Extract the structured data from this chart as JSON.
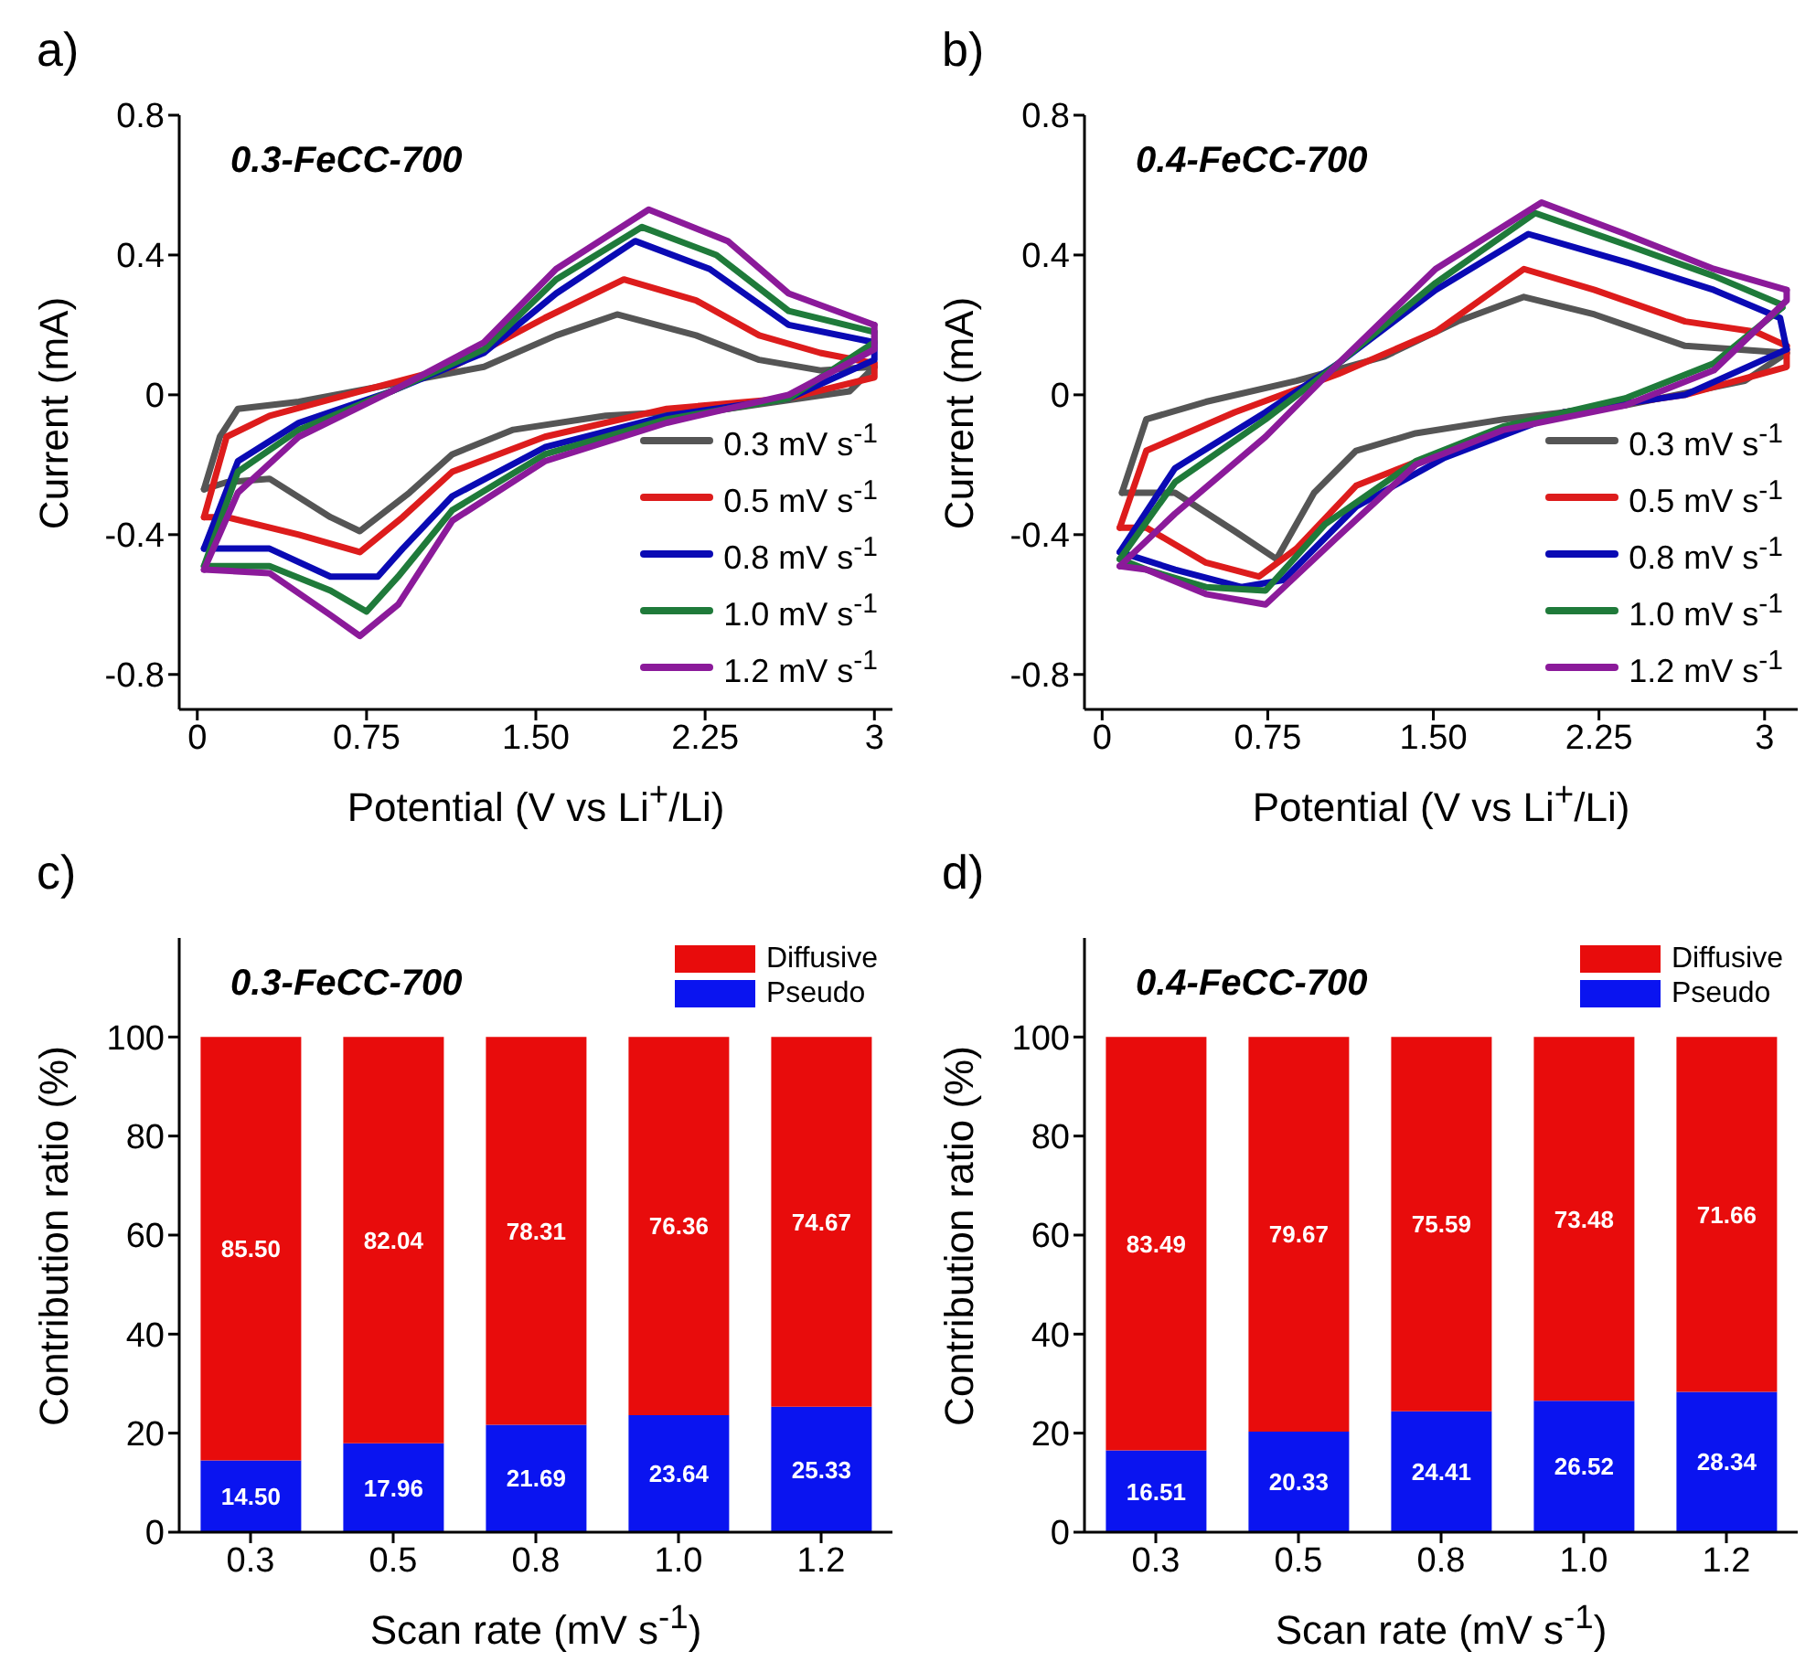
{
  "chart_data": [
    {
      "type": "line",
      "title": "0.3-FeCC-700",
      "xlabel": "Potential (V vs Li$^{+}$/Li)",
      "ylabel": "Current (mA)",
      "annotations": [
        "a)"
      ],
      "xlim": [
        -0.08,
        3.08
      ],
      "ylim": [
        -0.9,
        0.8
      ],
      "xticks": [
        0,
        0.75,
        {
          "value": 1.5,
          "label": "1.50"
        },
        2.25,
        3
      ],
      "yticks": [
        -0.8,
        -0.4,
        0,
        0.4,
        0.8
      ],
      "grid": false,
      "legend": "bottom right",
      "marker": "none",
      "line_style": "solid",
      "series": [
        {
          "name": "0.3 mV s$^{-1}$",
          "color": "#555555",
          "x": [
            0.03,
            0.1,
            0.18,
            0.45,
            0.86,
            1.27,
            1.59,
            1.86,
            2.21,
            2.49,
            2.76,
            3.0
          ],
          "values": [
            -0.27,
            -0.12,
            -0.04,
            -0.02,
            0.03,
            0.08,
            0.17,
            0.23,
            0.17,
            0.1,
            0.07,
            0.08
          ]
        },
        {
          "color": "#555555",
          "x": [
            3.0,
            2.89,
            2.35,
            1.81,
            1.4,
            1.13,
            0.94,
            0.72,
            0.59,
            0.32,
            0.13,
            0.03
          ],
          "values": [
            0.08,
            0.01,
            -0.04,
            -0.06,
            -0.1,
            -0.17,
            -0.28,
            -0.39,
            -0.35,
            -0.24,
            -0.25,
            -0.27
          ]
        },
        {
          "name": "0.5 mV s$^{-1}$",
          "color": "#dd1c1c",
          "x": [
            0.03,
            0.13,
            0.32,
            0.72,
            1.13,
            1.54,
            1.89,
            2.21,
            2.49,
            2.76,
            3.0
          ],
          "values": [
            -0.35,
            -0.12,
            -0.06,
            0.01,
            0.08,
            0.22,
            0.33,
            0.27,
            0.17,
            0.12,
            0.09
          ]
        },
        {
          "color": "#dd1c1c",
          "x": [
            3.0,
            3.0,
            2.62,
            2.08,
            1.54,
            1.13,
            0.91,
            0.72,
            0.45,
            0.13,
            0.03
          ],
          "values": [
            0.09,
            0.05,
            -0.01,
            -0.04,
            -0.12,
            -0.22,
            -0.35,
            -0.45,
            -0.4,
            -0.35,
            -0.35
          ]
        },
        {
          "name": "0.8 mV s$^{-1}$",
          "color": "#0a0ab4",
          "x": [
            0.03,
            0.18,
            0.45,
            0.86,
            1.27,
            1.59,
            1.94,
            2.27,
            2.62,
            3.0
          ],
          "values": [
            -0.44,
            -0.19,
            -0.08,
            0.01,
            0.12,
            0.29,
            0.44,
            0.36,
            0.2,
            0.15
          ]
        },
        {
          "color": "#0a0ab4",
          "x": [
            3.0,
            3.0,
            2.62,
            2.08,
            1.54,
            1.13,
            0.91,
            0.8,
            0.59,
            0.32,
            0.03
          ],
          "values": [
            0.15,
            0.1,
            -0.01,
            -0.06,
            -0.15,
            -0.29,
            -0.44,
            -0.52,
            -0.52,
            -0.44,
            -0.44
          ]
        },
        {
          "name": "1.0 mV s$^{-1}$",
          "color": "#1f7a3a",
          "x": [
            0.03,
            0.18,
            0.45,
            0.86,
            1.27,
            1.59,
            1.97,
            2.3,
            2.62,
            3.0
          ],
          "values": [
            -0.49,
            -0.22,
            -0.1,
            0.01,
            0.13,
            0.33,
            0.48,
            0.4,
            0.24,
            0.18
          ]
        },
        {
          "color": "#1f7a3a",
          "x": [
            3.0,
            3.0,
            2.62,
            2.08,
            1.54,
            1.13,
            0.89,
            0.75,
            0.59,
            0.32,
            0.03
          ],
          "values": [
            0.18,
            0.15,
            -0.01,
            -0.07,
            -0.17,
            -0.33,
            -0.52,
            -0.62,
            -0.56,
            -0.49,
            -0.49
          ]
        },
        {
          "name": "1.2 mV s$^{-1}$",
          "color": "#8b1a9a",
          "x": [
            0.03,
            0.18,
            0.45,
            0.86,
            1.27,
            1.59,
            2.0,
            2.35,
            2.62,
            3.0
          ],
          "values": [
            -0.5,
            -0.28,
            -0.12,
            0.01,
            0.15,
            0.36,
            0.53,
            0.44,
            0.29,
            0.2
          ]
        },
        {
          "color": "#8b1a9a",
          "x": [
            3.0,
            3.0,
            2.62,
            2.08,
            1.54,
            1.13,
            0.89,
            0.72,
            0.59,
            0.32,
            0.03
          ],
          "values": [
            0.2,
            0.13,
            0.0,
            -0.08,
            -0.19,
            -0.36,
            -0.6,
            -0.69,
            -0.63,
            -0.51,
            -0.5
          ]
        }
      ]
    },
    {
      "type": "line",
      "title": "0.4-FeCC-700",
      "xlabel": "Potential (V vs Li$^{+}$/Li)",
      "ylabel": "Current (mA)",
      "annotations": [
        "b)"
      ],
      "xlim": [
        -0.08,
        3.15
      ],
      "ylim": [
        -0.9,
        0.8
      ],
      "xticks": [
        0,
        0.75,
        {
          "value": 1.5,
          "label": "1.50"
        },
        2.25,
        3
      ],
      "yticks": [
        -0.8,
        -0.4,
        0,
        0.4,
        0.8
      ],
      "grid": false,
      "legend": "bottom right",
      "marker": "none",
      "line_style": "solid",
      "series": [
        {
          "name": "0.3 mV s$^{-1}$",
          "color": "#555555",
          "x": [
            0.09,
            0.2,
            0.47,
            0.88,
            1.28,
            1.61,
            1.91,
            2.23,
            2.64,
            3.1
          ],
          "values": [
            -0.28,
            -0.07,
            -0.02,
            0.04,
            0.11,
            0.21,
            0.28,
            0.23,
            0.14,
            0.12
          ]
        },
        {
          "color": "#555555",
          "x": [
            3.1,
            2.91,
            2.37,
            1.82,
            1.42,
            1.15,
            0.96,
            0.79,
            0.6,
            0.33,
            0.09
          ],
          "values": [
            0.12,
            0.04,
            -0.03,
            -0.07,
            -0.11,
            -0.16,
            -0.28,
            -0.47,
            -0.39,
            -0.28,
            -0.28
          ]
        },
        {
          "name": "0.5 mV s$^{-1}$",
          "color": "#dd1c1c",
          "x": [
            0.08,
            0.2,
            0.6,
            1.07,
            1.51,
            1.91,
            2.23,
            2.64,
            2.96,
            3.1
          ],
          "values": [
            -0.38,
            -0.16,
            -0.05,
            0.06,
            0.18,
            0.36,
            0.3,
            0.21,
            0.18,
            0.14
          ]
        },
        {
          "color": "#dd1c1c",
          "x": [
            3.1,
            3.1,
            2.64,
            2.09,
            1.55,
            1.15,
            0.88,
            0.71,
            0.47,
            0.2,
            0.08
          ],
          "values": [
            0.14,
            0.08,
            0.0,
            -0.05,
            -0.16,
            -0.26,
            -0.44,
            -0.52,
            -0.48,
            -0.38,
            -0.38
          ]
        },
        {
          "name": "0.8 mV s$^{-1}$",
          "color": "#0a0ab4",
          "x": [
            0.08,
            0.33,
            0.74,
            1.07,
            1.51,
            1.93,
            2.37,
            2.77,
            3.07,
            3.1
          ],
          "values": [
            -0.45,
            -0.21,
            -0.05,
            0.09,
            0.3,
            0.46,
            0.38,
            0.3,
            0.22,
            0.13
          ]
        },
        {
          "color": "#0a0ab4",
          "x": [
            3.1,
            2.64,
            2.09,
            1.55,
            1.15,
            0.82,
            0.63,
            0.33,
            0.08
          ],
          "values": [
            0.13,
            0.0,
            -0.05,
            -0.18,
            -0.32,
            -0.53,
            -0.55,
            -0.5,
            -0.45
          ]
        },
        {
          "name": "1.0 mV s$^{-1}$",
          "color": "#1f7a3a",
          "x": [
            0.08,
            0.33,
            0.74,
            1.07,
            1.51,
            1.96,
            2.37,
            2.77,
            3.07,
            3.08
          ],
          "values": [
            -0.47,
            -0.25,
            -0.07,
            0.09,
            0.32,
            0.52,
            0.43,
            0.34,
            0.26,
            0.25
          ]
        },
        {
          "color": "#1f7a3a",
          "x": [
            3.08,
            2.77,
            2.37,
            1.82,
            1.42,
            1.01,
            0.74,
            0.47,
            0.2,
            0.08
          ],
          "values": [
            0.25,
            0.09,
            -0.01,
            -0.09,
            -0.19,
            -0.37,
            -0.56,
            -0.55,
            -0.5,
            -0.47
          ]
        },
        {
          "name": "1.2 mV s$^{-1}$",
          "color": "#8b1a9a",
          "x": [
            0.08,
            0.33,
            0.74,
            1.07,
            1.51,
            1.99,
            2.37,
            2.77,
            3.1
          ],
          "values": [
            -0.49,
            -0.34,
            -0.12,
            0.09,
            0.36,
            0.55,
            0.46,
            0.36,
            0.3
          ]
        },
        {
          "color": "#8b1a9a",
          "x": [
            3.1,
            3.1,
            2.77,
            2.37,
            1.82,
            1.42,
            1.06,
            0.74,
            0.47,
            0.2,
            0.08
          ],
          "values": [
            0.3,
            0.27,
            0.07,
            -0.03,
            -0.1,
            -0.2,
            -0.41,
            -0.6,
            -0.57,
            -0.5,
            -0.49
          ]
        }
      ]
    },
    {
      "type": "bar",
      "title": "0.3-FeCC-700",
      "xlabel": "Scan rate (mV s$^{-1}$)",
      "ylabel": "Contribution ratio (%)",
      "annotations": [
        "c)"
      ],
      "categories": [
        "0.3",
        "0.5",
        "0.8",
        "1.0",
        "1.2"
      ],
      "ylim": [
        0,
        120
      ],
      "yticks": [
        0,
        20,
        40,
        60,
        80,
        100
      ],
      "grid": false,
      "legend": "top right",
      "stacked": true,
      "series": [
        {
          "name": "Pseudo",
          "color": "#0a14f0",
          "values": [
            14.5,
            17.96,
            21.69,
            23.64,
            25.33
          ],
          "value_labels": [
            "14.50",
            "17.96",
            "21.69",
            "23.64",
            "25.33"
          ]
        },
        {
          "name": "Diffusive",
          "color": "#e80c0c",
          "values": [
            85.5,
            82.04,
            78.31,
            76.36,
            74.67
          ],
          "value_labels": [
            "85.50",
            "82.04",
            "78.31",
            "76.36",
            "74.67"
          ]
        }
      ]
    },
    {
      "type": "bar",
      "title": "0.4-FeCC-700",
      "xlabel": "Scan rate (mV s$^{-1}$)",
      "ylabel": "Contribution ratio (%)",
      "annotations": [
        "d)"
      ],
      "categories": [
        "0.3",
        "0.5",
        "0.8",
        "1.0",
        "1.2"
      ],
      "ylim": [
        0,
        120
      ],
      "yticks": [
        0,
        20,
        40,
        60,
        80,
        100
      ],
      "grid": false,
      "legend": "top right",
      "stacked": true,
      "series": [
        {
          "name": "Pseudo",
          "color": "#0a14f0",
          "values": [
            16.51,
            20.33,
            24.41,
            26.52,
            28.34
          ],
          "value_labels": [
            "16.51",
            "20.33",
            "24.41",
            "26.52",
            "28.34"
          ]
        },
        {
          "name": "Diffusive",
          "color": "#e80c0c",
          "values": [
            83.49,
            79.67,
            75.59,
            73.48,
            71.66
          ],
          "value_labels": [
            "83.49",
            "79.67",
            "75.59",
            "73.48",
            "71.66"
          ]
        }
      ]
    }
  ]
}
